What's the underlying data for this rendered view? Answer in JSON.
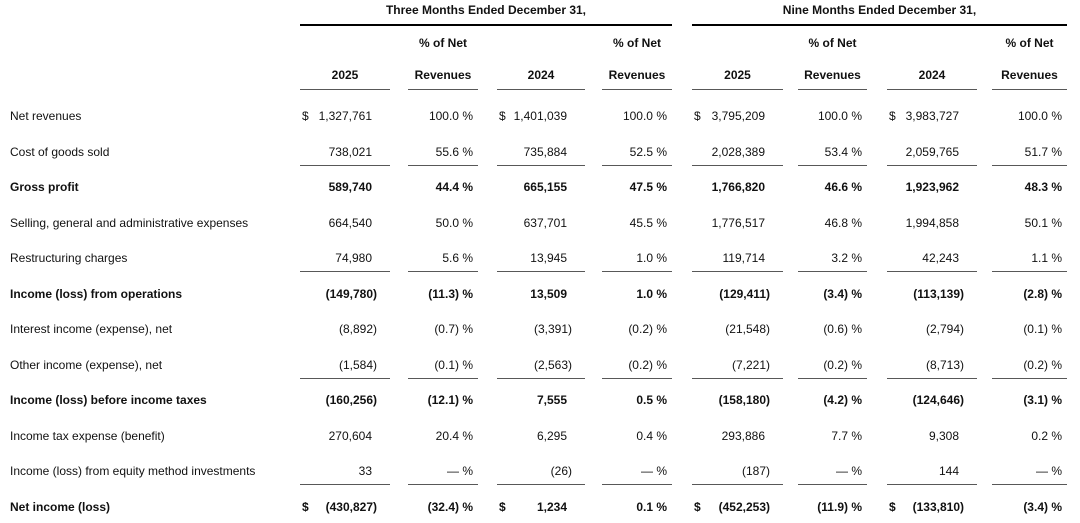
{
  "table": {
    "groups": [
      "Three Months Ended December 31,",
      "Nine Months Ended December 31,"
    ],
    "percent_subheader": "% of Net",
    "col_headers": [
      "2025",
      "Revenues",
      "2024",
      "Revenues",
      "2025",
      "Revenues",
      "2024",
      "Revenues"
    ],
    "rows": [
      {
        "label": "Net revenues",
        "bold": false,
        "underline": false,
        "values": [
          "$ 1,327,761",
          "100.0 %",
          "$ 1,401,039",
          "100.0 %",
          "$ 3,795,209",
          "100.0 %",
          "$ 3,983,727",
          "100.0 %"
        ]
      },
      {
        "label": "Cost of goods sold",
        "bold": false,
        "underline": true,
        "values": [
          "738,021",
          "55.6 %",
          "735,884",
          "52.5 %",
          "2,028,389",
          "53.4 %",
          "2,059,765",
          "51.7 %"
        ]
      },
      {
        "label": "Gross profit",
        "bold": true,
        "underline": false,
        "values": [
          "589,740",
          "44.4 %",
          "665,155",
          "47.5 %",
          "1,766,820",
          "46.6 %",
          "1,923,962",
          "48.3 %"
        ]
      },
      {
        "label": "Selling, general and administrative expenses",
        "bold": false,
        "underline": false,
        "values": [
          "664,540",
          "50.0 %",
          "637,701",
          "45.5 %",
          "1,776,517",
          "46.8 %",
          "1,994,858",
          "50.1 %"
        ]
      },
      {
        "label": "Restructuring charges",
        "bold": false,
        "underline": true,
        "values": [
          "74,980",
          "5.6 %",
          "13,945",
          "1.0 %",
          "119,714",
          "3.2 %",
          "42,243",
          "1.1 %"
        ]
      },
      {
        "label": "Income (loss) from operations",
        "bold": true,
        "underline": false,
        "values": [
          "(149,780)",
          "(11.3) %",
          "13,509",
          "1.0 %",
          "(129,411)",
          "(3.4) %",
          "(113,139)",
          "(2.8) %"
        ]
      },
      {
        "label": "Interest income (expense), net",
        "bold": false,
        "underline": false,
        "values": [
          "(8,892)",
          "(0.7) %",
          "(3,391)",
          "(0.2) %",
          "(21,548)",
          "(0.6) %",
          "(2,794)",
          "(0.1) %"
        ]
      },
      {
        "label": "Other income (expense), net",
        "bold": false,
        "underline": true,
        "values": [
          "(1,584)",
          "(0.1) %",
          "(2,563)",
          "(0.2) %",
          "(7,221)",
          "(0.2) %",
          "(8,713)",
          "(0.2) %"
        ]
      },
      {
        "label": "Income (loss) before income taxes",
        "bold": true,
        "underline": false,
        "values": [
          "(160,256)",
          "(12.1) %",
          "7,555",
          "0.5 %",
          "(158,180)",
          "(4.2) %",
          "(124,646)",
          "(3.1) %"
        ]
      },
      {
        "label": "Income tax expense (benefit)",
        "bold": false,
        "underline": false,
        "values": [
          "270,604",
          "20.4 %",
          "6,295",
          "0.4 %",
          "293,886",
          "7.7 %",
          "9,308",
          "0.2 %"
        ]
      },
      {
        "label": "Income (loss) from equity method investments",
        "bold": false,
        "underline": true,
        "values": [
          "33",
          "— %",
          "(26)",
          "— %",
          "(187)",
          "— %",
          "144",
          "— %"
        ]
      },
      {
        "label": "Net income (loss)",
        "bold": true,
        "underline": false,
        "values": [
          "$ (430,827)",
          "(32.4) %",
          "$ 1,234",
          "0.1 %",
          "$ (452,253)",
          "(11.9) %",
          "$ (133,810)",
          "(3.4) %"
        ]
      }
    ]
  }
}
